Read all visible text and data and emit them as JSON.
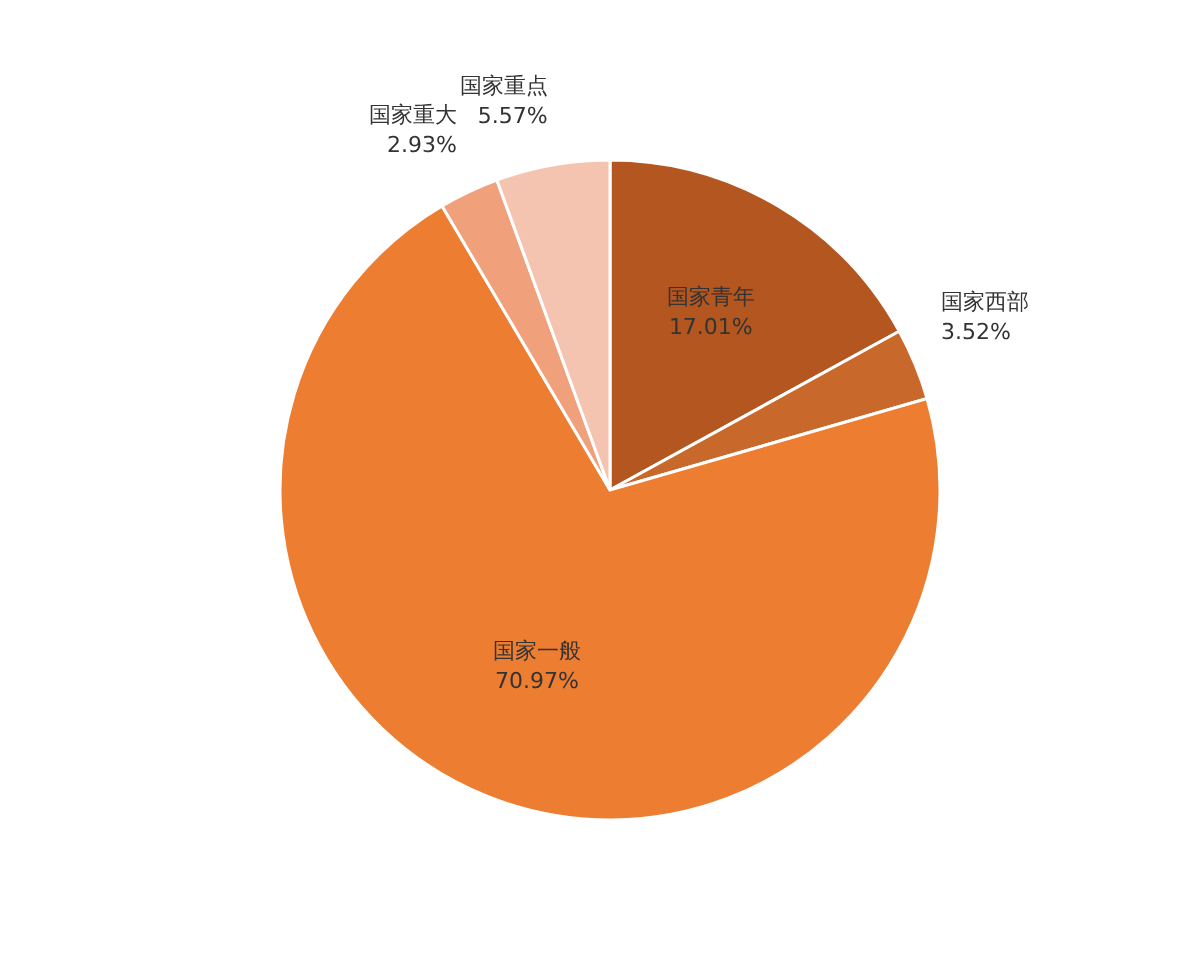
{
  "chart_data": {
    "type": "pie",
    "categories": [
      "国家青年",
      "国家西部",
      "国家一般",
      "国家重大",
      "国家重点"
    ],
    "values": [
      17.01,
      3.52,
      70.97,
      2.93,
      5.57
    ],
    "value_labels": [
      "17.01%",
      "3.52%",
      "70.97%",
      "2.93%",
      "5.57%"
    ],
    "colors": [
      "#b4561f",
      "#c8682a",
      "#ed7d31",
      "#f0a07a",
      "#f5c4b0"
    ],
    "legend": false
  }
}
